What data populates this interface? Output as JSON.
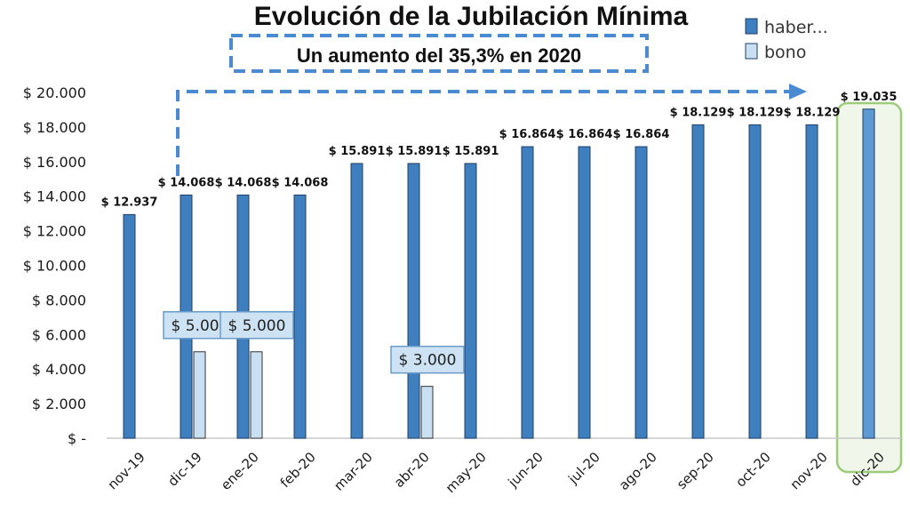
{
  "chart_data": {
    "type": "bar",
    "title": "Evolución de la Jubilación Mínima",
    "subtitle": "Un aumento del 35,3% en 2020",
    "categories": [
      "nov-19",
      "dic-19",
      "ene-20",
      "feb-20",
      "mar-20",
      "abr-20",
      "may-20",
      "jun-20",
      "jul-20",
      "ago-20",
      "sep-20",
      "oct-20",
      "nov-20",
      "dic-20"
    ],
    "series": [
      {
        "name": "haber...",
        "color": "#3f7fc0",
        "values": [
          12937,
          14068,
          14068,
          14068,
          15891,
          15891,
          15891,
          16864,
          16864,
          16864,
          18129,
          18129,
          18129,
          19035
        ],
        "labels": [
          "$ 12.937",
          "$ 14.068",
          "$ 14.068",
          "$ 14.068",
          "$ 15.891",
          "$ 15.891",
          "$ 15.891",
          "$ 16.864",
          "$ 16.864",
          "$ 16.864",
          "$ 18.129",
          "$ 18.129",
          "$ 18.129",
          "$ 19.035"
        ]
      },
      {
        "name": "bono",
        "color": "#c9dff2",
        "values": [
          0,
          5000,
          5000,
          0,
          0,
          3000,
          0,
          0,
          0,
          0,
          0,
          0,
          0,
          0
        ]
      }
    ],
    "callouts": [
      {
        "category_index": 1,
        "text": "$ 5.000"
      },
      {
        "category_index": 2,
        "text": "$ 5.000"
      },
      {
        "category_index": 5,
        "text": "$ 3.000"
      }
    ],
    "ylim": [
      0,
      20000
    ],
    "yticks": [
      0,
      2000,
      4000,
      6000,
      8000,
      10000,
      12000,
      14000,
      16000,
      18000,
      20000
    ],
    "ytick_labels": [
      "$ -",
      "$ 2.000",
      "$ 4.000",
      "$ 6.000",
      "$ 8.000",
      "$ 10.000",
      "$ 12.000",
      "$ 14.000",
      "$ 16.000",
      "$ 18.000",
      "$ 20.000"
    ],
    "grid": false,
    "legend": "top-right",
    "highlight_category_index": 13
  }
}
